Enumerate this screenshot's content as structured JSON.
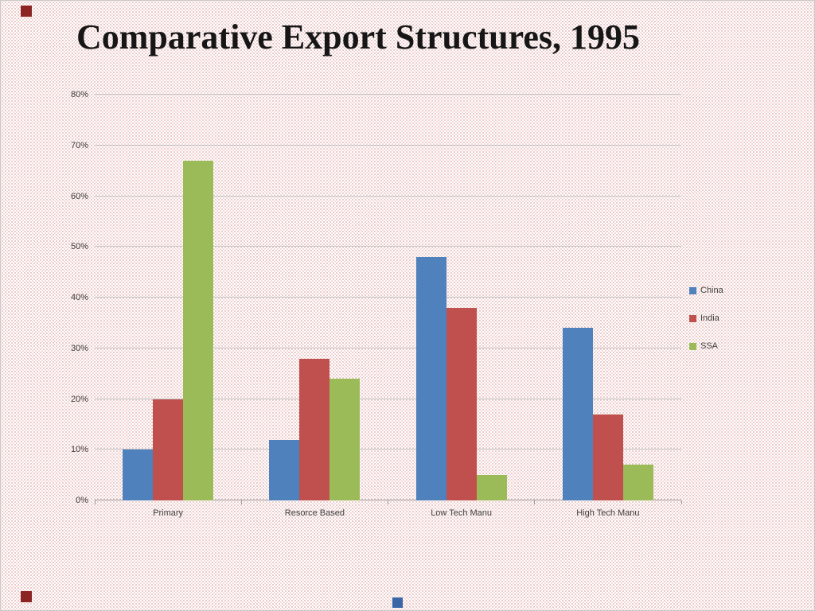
{
  "title": "Comparative Export Structures, 1995",
  "chart_data": {
    "type": "bar",
    "title": "Comparative Export Structures, 1995",
    "categories": [
      "Primary",
      "Resorce Based",
      "Low Tech Manu",
      "High Tech Manu"
    ],
    "series": [
      {
        "name": "China",
        "color": "#4F81BD",
        "values": [
          10,
          12,
          48,
          34
        ]
      },
      {
        "name": "India",
        "color": "#C0504D",
        "values": [
          20,
          28,
          38,
          17
        ]
      },
      {
        "name": "SSA",
        "color": "#9BBB59",
        "values": [
          67,
          24,
          5,
          7
        ]
      }
    ],
    "xlabel": "",
    "ylabel": "",
    "ylim": [
      0,
      80
    ],
    "ytick_step": 10,
    "ytick_labels": [
      "0%",
      "10%",
      "20%",
      "30%",
      "40%",
      "50%",
      "60%",
      "70%",
      "80%"
    ],
    "grid": true,
    "legend_position": "right",
    "legend_labels": [
      "China",
      "India",
      "SSA"
    ]
  },
  "decorations": {
    "corner_square_color": "#8C2424",
    "bottom_center_square_color": "#3A66A7",
    "dot_pattern_color": "#BE504B",
    "gridline_color": "#C3C3C3"
  }
}
